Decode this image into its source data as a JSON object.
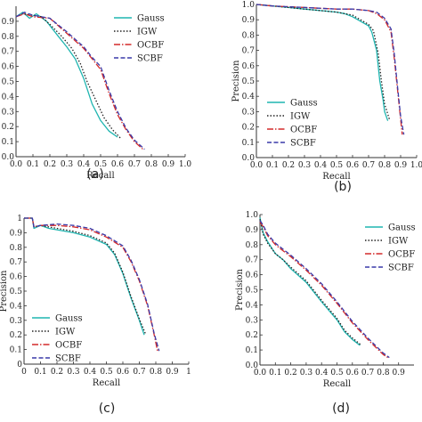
{
  "chart_data": [
    {
      "type": "line",
      "panel_label": "(a)",
      "xlabel": "Recall",
      "ylabel": "",
      "xlim": [
        0,
        1
      ],
      "ylim": [
        0,
        1
      ],
      "xticks": [
        "0.0",
        "0.1",
        "0.2",
        "0.3",
        "0.4",
        "0.5",
        "0.6",
        "0.7",
        "0.8",
        "0.9",
        "1.0"
      ],
      "yticks": [
        "0.0",
        "0.1",
        "0.2",
        "0.3",
        "0.4",
        "0.5",
        "0.6",
        "0.7",
        "0.8",
        "0.9"
      ],
      "legend_position": "top-right",
      "series": [
        {
          "name": "Gauss",
          "color": "#1fb5b0",
          "dash": "",
          "points": [
            [
              0,
              0.93
            ],
            [
              0.04,
              0.96
            ],
            [
              0.08,
              0.92
            ],
            [
              0.12,
              0.95
            ],
            [
              0.18,
              0.9
            ],
            [
              0.25,
              0.8
            ],
            [
              0.3,
              0.73
            ],
            [
              0.35,
              0.65
            ],
            [
              0.4,
              0.52
            ],
            [
              0.45,
              0.35
            ],
            [
              0.5,
              0.24
            ],
            [
              0.55,
              0.17
            ],
            [
              0.6,
              0.13
            ]
          ]
        },
        {
          "name": "IGW",
          "color": "#222222",
          "dash": "1.5,2",
          "points": [
            [
              0,
              0.93
            ],
            [
              0.04,
              0.95
            ],
            [
              0.1,
              0.94
            ],
            [
              0.15,
              0.93
            ],
            [
              0.2,
              0.88
            ],
            [
              0.27,
              0.8
            ],
            [
              0.33,
              0.72
            ],
            [
              0.38,
              0.62
            ],
            [
              0.42,
              0.5
            ],
            [
              0.47,
              0.38
            ],
            [
              0.52,
              0.26
            ],
            [
              0.57,
              0.18
            ],
            [
              0.62,
              0.12
            ]
          ]
        },
        {
          "name": "OCBF",
          "color": "#d42a2a",
          "dash": "7,2,1.5,2",
          "points": [
            [
              0,
              0.93
            ],
            [
              0.05,
              0.95
            ],
            [
              0.1,
              0.93
            ],
            [
              0.2,
              0.92
            ],
            [
              0.3,
              0.82
            ],
            [
              0.4,
              0.72
            ],
            [
              0.45,
              0.65
            ],
            [
              0.5,
              0.58
            ],
            [
              0.55,
              0.42
            ],
            [
              0.6,
              0.28
            ],
            [
              0.65,
              0.18
            ],
            [
              0.7,
              0.1
            ],
            [
              0.75,
              0.05
            ]
          ]
        },
        {
          "name": "SCBF",
          "color": "#3a3aa8",
          "dash": "5,2.5",
          "points": [
            [
              0,
              0.93
            ],
            [
              0.05,
              0.96
            ],
            [
              0.1,
              0.94
            ],
            [
              0.2,
              0.92
            ],
            [
              0.3,
              0.83
            ],
            [
              0.4,
              0.73
            ],
            [
              0.45,
              0.66
            ],
            [
              0.5,
              0.6
            ],
            [
              0.55,
              0.44
            ],
            [
              0.6,
              0.3
            ],
            [
              0.65,
              0.19
            ],
            [
              0.7,
              0.11
            ],
            [
              0.76,
              0.05
            ]
          ]
        }
      ]
    },
    {
      "type": "line",
      "panel_label": "(b)",
      "xlabel": "Recall",
      "ylabel": "Precision",
      "xlim": [
        0,
        1
      ],
      "ylim": [
        0,
        1
      ],
      "xticks": [
        "0.0",
        "0.1",
        "0.2",
        "0.3",
        "0.4",
        "0.5",
        "0.6",
        "0.7",
        "0.8",
        "0.9",
        "1.0"
      ],
      "yticks": [
        "0.0",
        "0.1",
        "0.2",
        "0.3",
        "0.4",
        "0.5",
        "0.6",
        "0.7",
        "0.8",
        "0.9",
        "1.0"
      ],
      "legend_position": "bottom-left",
      "series": [
        {
          "name": "Gauss",
          "color": "#1fb5b0",
          "dash": "",
          "points": [
            [
              0,
              1.0
            ],
            [
              0.1,
              0.99
            ],
            [
              0.2,
              0.98
            ],
            [
              0.3,
              0.97
            ],
            [
              0.4,
              0.96
            ],
            [
              0.5,
              0.95
            ],
            [
              0.55,
              0.94
            ],
            [
              0.6,
              0.92
            ],
            [
              0.65,
              0.89
            ],
            [
              0.7,
              0.86
            ],
            [
              0.72,
              0.82
            ],
            [
              0.75,
              0.7
            ],
            [
              0.77,
              0.5
            ],
            [
              0.79,
              0.38
            ],
            [
              0.8,
              0.3
            ],
            [
              0.82,
              0.24
            ]
          ]
        },
        {
          "name": "IGW",
          "color": "#222222",
          "dash": "1.5,2",
          "points": [
            [
              0,
              1.0
            ],
            [
              0.1,
              0.99
            ],
            [
              0.2,
              0.98
            ],
            [
              0.3,
              0.97
            ],
            [
              0.4,
              0.96
            ],
            [
              0.5,
              0.95
            ],
            [
              0.55,
              0.94
            ],
            [
              0.6,
              0.93
            ],
            [
              0.65,
              0.9
            ],
            [
              0.7,
              0.87
            ],
            [
              0.73,
              0.83
            ],
            [
              0.76,
              0.68
            ],
            [
              0.78,
              0.5
            ],
            [
              0.8,
              0.35
            ],
            [
              0.83,
              0.25
            ]
          ]
        },
        {
          "name": "OCBF",
          "color": "#d42a2a",
          "dash": "7,2,1.5,2",
          "points": [
            [
              0,
              1.0
            ],
            [
              0.1,
              0.99
            ],
            [
              0.3,
              0.98
            ],
            [
              0.5,
              0.97
            ],
            [
              0.6,
              0.97
            ],
            [
              0.7,
              0.96
            ],
            [
              0.75,
              0.94
            ],
            [
              0.8,
              0.9
            ],
            [
              0.84,
              0.82
            ],
            [
              0.86,
              0.65
            ],
            [
              0.88,
              0.45
            ],
            [
              0.9,
              0.25
            ],
            [
              0.91,
              0.15
            ]
          ]
        },
        {
          "name": "SCBF",
          "color": "#3a3aa8",
          "dash": "5,2.5",
          "points": [
            [
              0,
              1.0
            ],
            [
              0.1,
              0.99
            ],
            [
              0.3,
              0.98
            ],
            [
              0.5,
              0.97
            ],
            [
              0.6,
              0.97
            ],
            [
              0.7,
              0.96
            ],
            [
              0.75,
              0.95
            ],
            [
              0.8,
              0.91
            ],
            [
              0.84,
              0.84
            ],
            [
              0.86,
              0.68
            ],
            [
              0.88,
              0.47
            ],
            [
              0.9,
              0.27
            ],
            [
              0.92,
              0.15
            ]
          ]
        }
      ]
    },
    {
      "type": "line",
      "panel_label": "(c)",
      "xlabel": "Recall",
      "ylabel": "Precision",
      "xlim": [
        0,
        1
      ],
      "ylim": [
        0,
        1
      ],
      "xticks": [
        "0",
        "0.1",
        "0.2",
        "0.3",
        "0.4",
        "0.5",
        "0.6",
        "0.7",
        "0.8",
        "0.9",
        "1"
      ],
      "yticks": [
        "0",
        "0.1",
        "0.2",
        "0.3",
        "0.4",
        "0.5",
        "0.6",
        "0.7",
        "0.8",
        "0.9",
        "1"
      ],
      "legend_position": "bottom-left",
      "series": [
        {
          "name": "Gauss",
          "color": "#1fb5b0",
          "dash": "",
          "points": [
            [
              0,
              1.0
            ],
            [
              0.05,
              1.0
            ],
            [
              0.06,
              0.93
            ],
            [
              0.1,
              0.95
            ],
            [
              0.15,
              0.93
            ],
            [
              0.2,
              0.92
            ],
            [
              0.3,
              0.9
            ],
            [
              0.4,
              0.87
            ],
            [
              0.5,
              0.82
            ],
            [
              0.55,
              0.75
            ],
            [
              0.6,
              0.62
            ],
            [
              0.65,
              0.45
            ],
            [
              0.7,
              0.3
            ],
            [
              0.73,
              0.2
            ]
          ]
        },
        {
          "name": "IGW",
          "color": "#222222",
          "dash": "1.5,2",
          "points": [
            [
              0,
              1.0
            ],
            [
              0.05,
              1.0
            ],
            [
              0.06,
              0.94
            ],
            [
              0.1,
              0.95
            ],
            [
              0.2,
              0.93
            ],
            [
              0.3,
              0.91
            ],
            [
              0.4,
              0.88
            ],
            [
              0.5,
              0.83
            ],
            [
              0.55,
              0.76
            ],
            [
              0.6,
              0.63
            ],
            [
              0.65,
              0.46
            ],
            [
              0.7,
              0.31
            ],
            [
              0.74,
              0.2
            ]
          ]
        },
        {
          "name": "OCBF",
          "color": "#d42a2a",
          "dash": "7,2,1.5,2",
          "points": [
            [
              0,
              1.0
            ],
            [
              0.05,
              1.0
            ],
            [
              0.06,
              0.94
            ],
            [
              0.1,
              0.95
            ],
            [
              0.2,
              0.95
            ],
            [
              0.3,
              0.94
            ],
            [
              0.4,
              0.92
            ],
            [
              0.5,
              0.87
            ],
            [
              0.6,
              0.8
            ],
            [
              0.65,
              0.7
            ],
            [
              0.7,
              0.57
            ],
            [
              0.75,
              0.4
            ],
            [
              0.79,
              0.2
            ],
            [
              0.81,
              0.09
            ]
          ]
        },
        {
          "name": "SCBF",
          "color": "#3a3aa8",
          "dash": "5,2.5",
          "points": [
            [
              0,
              1.0
            ],
            [
              0.05,
              1.0
            ],
            [
              0.06,
              0.94
            ],
            [
              0.1,
              0.95
            ],
            [
              0.2,
              0.96
            ],
            [
              0.3,
              0.95
            ],
            [
              0.4,
              0.93
            ],
            [
              0.5,
              0.88
            ],
            [
              0.6,
              0.81
            ],
            [
              0.65,
              0.71
            ],
            [
              0.7,
              0.58
            ],
            [
              0.75,
              0.41
            ],
            [
              0.79,
              0.21
            ],
            [
              0.82,
              0.09
            ]
          ]
        }
      ]
    },
    {
      "type": "line",
      "panel_label": "(d)",
      "xlabel": "Recall",
      "ylabel": "Precision",
      "xlim": [
        0,
        1
      ],
      "ylim": [
        0,
        1
      ],
      "xticks": [
        "0.0",
        "0.1",
        "0.2",
        "0.3",
        "0.4",
        "0.5",
        "0.6",
        "0.7",
        "0.8",
        "0.9"
      ],
      "yticks": [
        "0.0",
        "0.1",
        "0.2",
        "0.3",
        "0.4",
        "0.5",
        "0.6",
        "0.7",
        "0.8",
        "0.9",
        "1.0"
      ],
      "legend_position": "top-right",
      "series": [
        {
          "name": "Gauss",
          "color": "#1fb5b0",
          "dash": "",
          "points": [
            [
              0,
              0.98
            ],
            [
              0.02,
              0.88
            ],
            [
              0.05,
              0.82
            ],
            [
              0.1,
              0.74
            ],
            [
              0.15,
              0.7
            ],
            [
              0.2,
              0.64
            ],
            [
              0.3,
              0.55
            ],
            [
              0.4,
              0.42
            ],
            [
              0.5,
              0.3
            ],
            [
              0.55,
              0.22
            ],
            [
              0.6,
              0.17
            ],
            [
              0.65,
              0.13
            ]
          ]
        },
        {
          "name": "IGW",
          "color": "#222222",
          "dash": "1.5,2",
          "points": [
            [
              0,
              0.97
            ],
            [
              0.02,
              0.87
            ],
            [
              0.05,
              0.81
            ],
            [
              0.1,
              0.74
            ],
            [
              0.15,
              0.7
            ],
            [
              0.2,
              0.65
            ],
            [
              0.3,
              0.56
            ],
            [
              0.4,
              0.43
            ],
            [
              0.5,
              0.31
            ],
            [
              0.55,
              0.23
            ],
            [
              0.6,
              0.18
            ],
            [
              0.66,
              0.13
            ]
          ]
        },
        {
          "name": "OCBF",
          "color": "#d42a2a",
          "dash": "7,2,1.5,2",
          "points": [
            [
              0,
              0.95
            ],
            [
              0.02,
              0.92
            ],
            [
              0.05,
              0.86
            ],
            [
              0.1,
              0.8
            ],
            [
              0.15,
              0.76
            ],
            [
              0.2,
              0.72
            ],
            [
              0.3,
              0.63
            ],
            [
              0.4,
              0.53
            ],
            [
              0.5,
              0.41
            ],
            [
              0.6,
              0.28
            ],
            [
              0.7,
              0.17
            ],
            [
              0.8,
              0.07
            ],
            [
              0.83,
              0.05
            ]
          ]
        },
        {
          "name": "SCBF",
          "color": "#3a3aa8",
          "dash": "5,2.5",
          "points": [
            [
              0,
              0.96
            ],
            [
              0.02,
              0.93
            ],
            [
              0.05,
              0.87
            ],
            [
              0.1,
              0.81
            ],
            [
              0.15,
              0.77
            ],
            [
              0.2,
              0.73
            ],
            [
              0.3,
              0.64
            ],
            [
              0.4,
              0.54
            ],
            [
              0.5,
              0.42
            ],
            [
              0.6,
              0.29
            ],
            [
              0.7,
              0.18
            ],
            [
              0.8,
              0.08
            ],
            [
              0.84,
              0.05
            ]
          ]
        }
      ]
    }
  ]
}
